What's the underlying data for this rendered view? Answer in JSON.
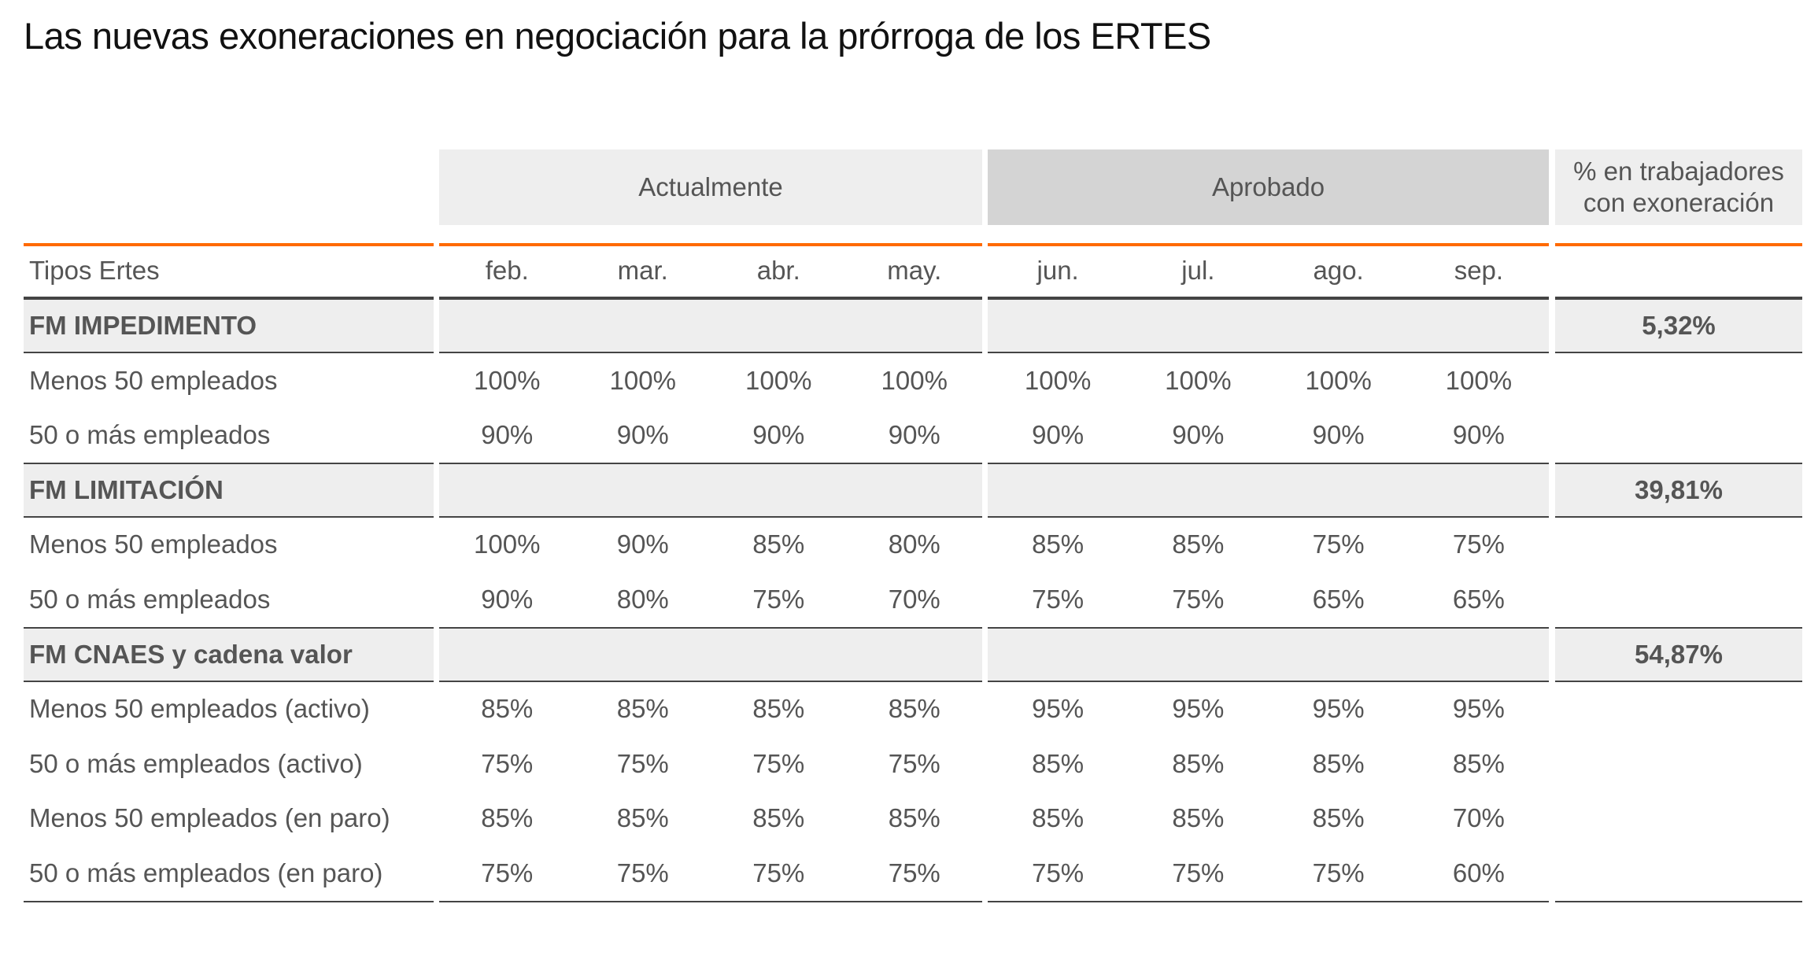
{
  "title": "Las nuevas exoneraciones en negociación para la prórroga de los ERTES",
  "headers": {
    "group_actual": "Actualmente",
    "group_aprobado": "Aprobado",
    "pct_line1": "% en trabajadores",
    "pct_line2": "con exoneración",
    "label_col": "Tipos Ertes",
    "months": [
      "feb.",
      "mar.",
      "abr.",
      "may.",
      "jun.",
      "jul.",
      "ago.",
      "sep."
    ]
  },
  "colors": {
    "accent": "#ff6a00",
    "group_bg": "#eeeeee",
    "aprobado_bg": "#d4d4d4"
  },
  "rows": [
    {
      "type": "group",
      "label": "FM IMPEDIMENTO",
      "pct": "5,32%"
    },
    {
      "type": "data",
      "label": "Menos 50 empleados",
      "values": [
        "100%",
        "100%",
        "100%",
        "100%",
        "100%",
        "100%",
        "100%",
        "100%"
      ]
    },
    {
      "type": "data",
      "label": "50 o más empleados",
      "values": [
        "90%",
        "90%",
        "90%",
        "90%",
        "90%",
        "90%",
        "90%",
        "90%"
      ]
    },
    {
      "type": "group",
      "label": "FM LIMITACIÓN",
      "pct": "39,81%"
    },
    {
      "type": "data",
      "label": "Menos 50 empleados",
      "values": [
        "100%",
        "90%",
        "85%",
        "80%",
        "85%",
        "85%",
        "75%",
        "75%"
      ]
    },
    {
      "type": "data",
      "label": "50 o más empleados",
      "values": [
        "90%",
        "80%",
        "75%",
        "70%",
        "75%",
        "75%",
        "65%",
        "65%"
      ]
    },
    {
      "type": "group",
      "label": "FM CNAES y cadena valor",
      "pct": "54,87%"
    },
    {
      "type": "data",
      "label": "Menos 50 empleados (activo)",
      "values": [
        "85%",
        "85%",
        "85%",
        "85%",
        "95%",
        "95%",
        "95%",
        "95%"
      ]
    },
    {
      "type": "data",
      "label": "50 o más empleados (activo)",
      "values": [
        "75%",
        "75%",
        "75%",
        "75%",
        "85%",
        "85%",
        "85%",
        "85%"
      ]
    },
    {
      "type": "data",
      "label": "Menos 50 empleados (en paro)",
      "values": [
        "85%",
        "85%",
        "85%",
        "85%",
        "85%",
        "85%",
        "85%",
        "70%"
      ]
    },
    {
      "type": "data",
      "label": "50 o más empleados (en paro)",
      "values": [
        "75%",
        "75%",
        "75%",
        "75%",
        "75%",
        "75%",
        "75%",
        "60%"
      ]
    }
  ]
}
